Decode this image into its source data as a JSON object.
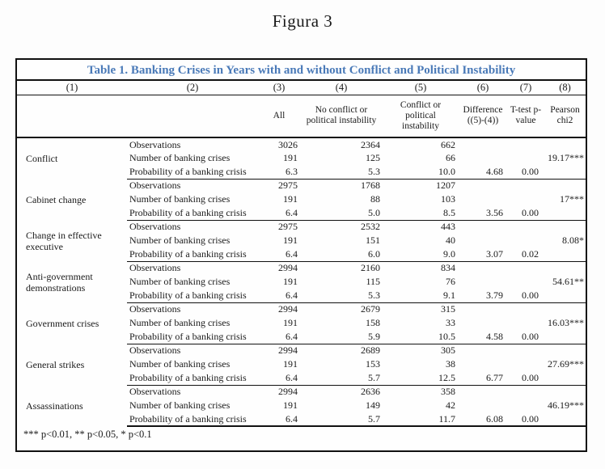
{
  "figure_title": "Figura 3",
  "table": {
    "title": "Table 1. Banking Crises in Years with and without Conflict and Political Instability",
    "title_color": "#4a7ab8",
    "column_numbers": [
      "(1)",
      "(2)",
      "(3)",
      "(4)",
      "(5)",
      "(6)",
      "(7)",
      "(8)"
    ],
    "column_headers": {
      "col3": "All",
      "col4": "No conflict or political instability",
      "col5": "Conflict or political instability",
      "col6": "Difference ((5)-(4))",
      "col7": "T-test p-value",
      "col8": "Pearson chi2"
    },
    "row_labels": {
      "observations": "Observations",
      "crises": "Number of banking crises",
      "probability": "Probability of a banking crisis"
    },
    "sections": [
      {
        "category": "Conflict",
        "observations": [
          "3026",
          "2364",
          "662"
        ],
        "crises": [
          "191",
          "125",
          "66"
        ],
        "probability": [
          "6.3",
          "5.3",
          "10.0"
        ],
        "difference": "4.68",
        "ttest": "0.00",
        "pearson": "19.17***"
      },
      {
        "category": "Cabinet change",
        "observations": [
          "2975",
          "1768",
          "1207"
        ],
        "crises": [
          "191",
          "88",
          "103"
        ],
        "probability": [
          "6.4",
          "5.0",
          "8.5"
        ],
        "difference": "3.56",
        "ttest": "0.00",
        "pearson": "17***"
      },
      {
        "category": "Change in effective executive",
        "observations": [
          "2975",
          "2532",
          "443"
        ],
        "crises": [
          "191",
          "151",
          "40"
        ],
        "probability": [
          "6.4",
          "6.0",
          "9.0"
        ],
        "difference": "3.07",
        "ttest": "0.02",
        "pearson": "8.08*"
      },
      {
        "category": "Anti-government demonstrations",
        "observations": [
          "2994",
          "2160",
          "834"
        ],
        "crises": [
          "191",
          "115",
          "76"
        ],
        "probability": [
          "6.4",
          "5.3",
          "9.1"
        ],
        "difference": "3.79",
        "ttest": "0.00",
        "pearson": "54.61**"
      },
      {
        "category": "Government crises",
        "observations": [
          "2994",
          "2679",
          "315"
        ],
        "crises": [
          "191",
          "158",
          "33"
        ],
        "probability": [
          "6.4",
          "5.9",
          "10.5"
        ],
        "difference": "4.58",
        "ttest": "0.00",
        "pearson": "16.03***"
      },
      {
        "category": "General strikes",
        "observations": [
          "2994",
          "2689",
          "305"
        ],
        "crises": [
          "191",
          "153",
          "38"
        ],
        "probability": [
          "6.4",
          "5.7",
          "12.5"
        ],
        "difference": "6.77",
        "ttest": "0.00",
        "pearson": "27.69***"
      },
      {
        "category": "Assassinations",
        "observations": [
          "2994",
          "2636",
          "358"
        ],
        "crises": [
          "191",
          "149",
          "42"
        ],
        "probability": [
          "6.4",
          "5.7",
          "11.7"
        ],
        "difference": "6.08",
        "ttest": "0.00",
        "pearson": "46.19***"
      }
    ],
    "footnote": "*** p<0.01, ** p<0.05, * p<0.1"
  }
}
